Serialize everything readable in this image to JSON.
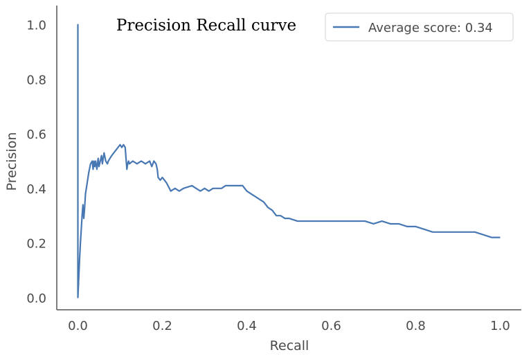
{
  "chart_data": {
    "type": "line",
    "title": "Precision Recall curve",
    "xlabel": "Recall",
    "ylabel": "Precision",
    "xlim": [
      -0.05,
      1.05
    ],
    "ylim": [
      -0.045,
      1.07
    ],
    "xticks": [
      "0.0",
      "0.2",
      "0.4",
      "0.6",
      "0.8",
      "1.0"
    ],
    "yticks": [
      "0.0",
      "0.2",
      "0.4",
      "0.6",
      "0.8",
      "1.0"
    ],
    "grid": false,
    "legend_position": "top-right",
    "line_color": "#4878b4",
    "series": [
      {
        "name": "Average score: 0.34",
        "x": [
          0.0,
          0.0,
          0.0,
          0.002,
          0.004,
          0.006,
          0.008,
          0.01,
          0.012,
          0.014,
          0.016,
          0.018,
          0.02,
          0.022,
          0.024,
          0.026,
          0.03,
          0.034,
          0.036,
          0.038,
          0.04,
          0.042,
          0.045,
          0.048,
          0.05,
          0.053,
          0.056,
          0.058,
          0.062,
          0.066,
          0.07,
          0.072,
          0.076,
          0.08,
          0.085,
          0.09,
          0.095,
          0.1,
          0.104,
          0.108,
          0.112,
          0.116,
          0.118,
          0.12,
          0.122,
          0.13,
          0.14,
          0.15,
          0.16,
          0.17,
          0.175,
          0.18,
          0.185,
          0.188,
          0.19,
          0.195,
          0.2,
          0.205,
          0.21,
          0.22,
          0.23,
          0.24,
          0.25,
          0.27,
          0.28,
          0.29,
          0.3,
          0.31,
          0.32,
          0.33,
          0.34,
          0.35,
          0.36,
          0.37,
          0.38,
          0.39,
          0.4,
          0.41,
          0.42,
          0.43,
          0.44,
          0.45,
          0.46,
          0.47,
          0.48,
          0.49,
          0.5,
          0.52,
          0.54,
          0.56,
          0.58,
          0.6,
          0.62,
          0.64,
          0.66,
          0.68,
          0.7,
          0.72,
          0.74,
          0.76,
          0.78,
          0.8,
          0.82,
          0.84,
          0.86,
          0.88,
          0.9,
          0.92,
          0.94,
          0.96,
          0.98,
          0.99,
          1.0
        ],
        "y": [
          0.0,
          1.0,
          0.0,
          0.07,
          0.14,
          0.2,
          0.25,
          0.3,
          0.34,
          0.29,
          0.33,
          0.38,
          0.4,
          0.42,
          0.44,
          0.46,
          0.49,
          0.5,
          0.47,
          0.5,
          0.48,
          0.5,
          0.47,
          0.51,
          0.48,
          0.5,
          0.52,
          0.49,
          0.53,
          0.5,
          0.49,
          0.5,
          0.51,
          0.52,
          0.53,
          0.54,
          0.55,
          0.56,
          0.55,
          0.56,
          0.55,
          0.47,
          0.49,
          0.5,
          0.49,
          0.5,
          0.49,
          0.5,
          0.49,
          0.5,
          0.48,
          0.5,
          0.49,
          0.47,
          0.44,
          0.43,
          0.44,
          0.43,
          0.42,
          0.39,
          0.4,
          0.39,
          0.4,
          0.41,
          0.4,
          0.39,
          0.4,
          0.39,
          0.4,
          0.4,
          0.4,
          0.41,
          0.41,
          0.41,
          0.41,
          0.41,
          0.39,
          0.38,
          0.37,
          0.36,
          0.35,
          0.33,
          0.32,
          0.3,
          0.3,
          0.29,
          0.29,
          0.28,
          0.28,
          0.28,
          0.28,
          0.28,
          0.28,
          0.28,
          0.28,
          0.28,
          0.27,
          0.28,
          0.27,
          0.27,
          0.26,
          0.26,
          0.25,
          0.24,
          0.24,
          0.24,
          0.24,
          0.24,
          0.24,
          0.23,
          0.22,
          0.22,
          0.22
        ]
      }
    ]
  }
}
